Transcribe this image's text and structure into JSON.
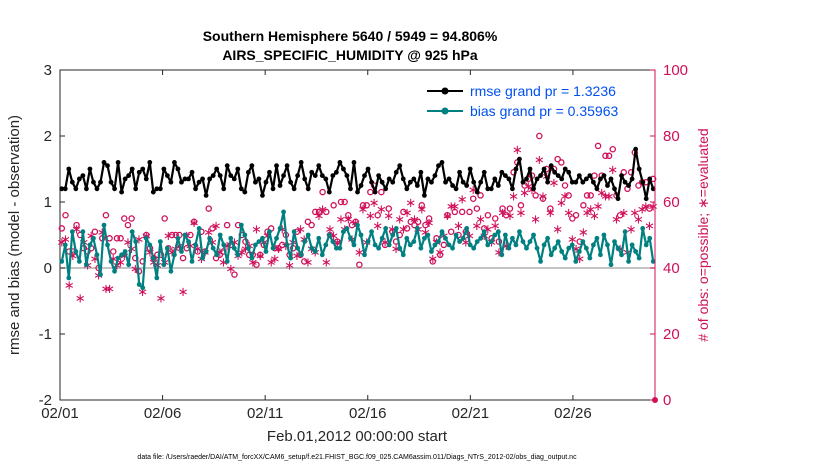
{
  "chart_data": {
    "type": "line",
    "title_line1": "Southern Hemisphere 5640 / 5949 = 94.806%",
    "title_line2": "AIRS_SPECIFIC_HUMIDITY @ 925 hPa",
    "xlabel": "Feb.01,2012 00:00:00 start",
    "ylabel_left": "rmse and bias (model - observation)",
    "ylabel_right": "# of obs: o=possible; ∗=evaluated",
    "footnote": "data file: /Users/raeder/DAI/ATM_forcXX/CAM6_setup/f.e21.FHIST_BGC.f09_025.CAM6assim.011/Diags_NTrS_2012-02/obs_diag_output.nc",
    "xticks": [
      "02/01",
      "02/06",
      "02/11",
      "02/16",
      "02/21",
      "02/26"
    ],
    "yticks_left": [
      "-2",
      "-1",
      "0",
      "1",
      "2",
      "3"
    ],
    "yticks_right": [
      "0",
      "20",
      "40",
      "60",
      "80",
      "100"
    ],
    "ylim_left": [
      -2,
      3
    ],
    "ylim_right": [
      0,
      100
    ],
    "xlim_days": [
      0,
      29
    ],
    "colors": {
      "rmse": "#000000",
      "bias": "#008080",
      "obs": "#d0105a",
      "zero_line": "#b0b0b0",
      "legend_text": "#0050f0"
    },
    "series": [
      {
        "name": "rmse grand pr = 1.3236",
        "key": "rmse",
        "values": [
          1.2,
          1.2,
          1.5,
          1.3,
          1.2,
          1.35,
          1.4,
          1.2,
          1.5,
          1.3,
          1.2,
          1.3,
          1.6,
          1.55,
          1.3,
          1.2,
          1.6,
          1.15,
          1.35,
          1.4,
          1.5,
          1.2,
          1.45,
          1.5,
          1.35,
          1.6,
          1.15,
          1.2,
          1.2,
          1.5,
          1.4,
          1.3,
          1.6,
          1.5,
          1.3,
          1.35,
          1.35,
          1.45,
          1.2,
          1.3,
          1.35,
          1.1,
          1.35,
          1.4,
          1.5,
          1.4,
          1.2,
          1.55,
          1.4,
          1.35,
          1.5,
          1.2,
          1.15,
          1.45,
          1.55,
          1.3,
          1.35,
          1.1,
          1.3,
          1.45,
          1.2,
          1.55,
          1.25,
          1.4,
          1.55,
          1.3,
          1.2,
          1.4,
          1.6,
          1.35,
          1.2,
          1.45,
          1.4,
          1.55,
          1.4,
          1.35,
          1.15,
          1.4,
          1.45,
          1.6,
          1.5,
          1.4,
          1.2,
          1.6,
          1.15,
          1.25,
          1.4,
          1.5,
          1.3,
          1.15,
          1.4,
          1.3,
          1.2,
          1.35,
          1.3,
          1.45,
          1.55,
          1.35,
          1.2,
          1.3,
          1.35,
          1.25,
          1.45,
          1.1,
          1.35,
          1.3,
          1.4,
          1.55,
          1.6,
          1.3,
          1.35,
          1.25,
          1.2,
          1.45,
          1.3,
          1.25,
          1.5,
          1.3,
          1.15,
          1.3,
          1.45,
          1.2,
          1.2,
          1.35,
          1.25,
          1.45,
          1.4,
          1.35,
          1.2,
          1.5,
          1.65,
          1.3,
          1.35,
          1.5,
          1.2,
          1.35,
          1.4,
          1.5,
          1.3,
          1.55,
          1.45,
          1.4,
          1.35,
          1.5,
          1.45,
          1.3,
          1.3,
          1.4,
          1.3,
          1.35,
          1.4,
          1.3,
          1.2,
          1.35,
          1.4,
          1.25,
          1.35,
          1.2,
          1.05,
          1.4,
          1.3,
          1.25,
          1.35,
          1.8,
          1.5,
          1.3,
          1.05,
          1.35,
          1.2
        ]
      },
      {
        "name": "bias grand pr = 0.35963",
        "key": "bias",
        "values": [
          0.1,
          0.35,
          -0.15,
          0.55,
          0.25,
          0.1,
          0.55,
          0.05,
          0.35,
          0.45,
          0.2,
          -0.1,
          0.65,
          0.35,
          0.1,
          -0.05,
          0.15,
          0.2,
          0.25,
          0.05,
          0.55,
          0.4,
          -0.25,
          -0.3,
          0.45,
          0.35,
          0.15,
          -0.15,
          0.4,
          0.05,
          0.3,
          -0.05,
          0.2,
          0.45,
          0.25,
          0.5,
          0.4,
          0.1,
          0.35,
          0.6,
          0.15,
          0.25,
          0.45,
          0.3,
          0.2,
          0.5,
          0.35,
          0.1,
          0.45,
          0.3,
          0.2,
          0.65,
          0.5,
          0.3,
          0.15,
          0.35,
          0.4,
          0.45,
          0.25,
          0.55,
          0.3,
          0.45,
          0.6,
          0.85,
          0.35,
          0.15,
          0.55,
          0.3,
          0.2,
          0.4,
          0.5,
          0.3,
          0.25,
          0.45,
          0.2,
          0.35,
          0.5,
          0.4,
          0.3,
          0.3,
          0.55,
          0.6,
          0.45,
          0.35,
          0.65,
          0.5,
          0.2,
          0.4,
          0.55,
          0.35,
          0.3,
          0.45,
          0.6,
          0.35,
          0.5,
          0.6,
          0.3,
          0.2,
          0.45,
          0.35,
          0.4,
          0.6,
          0.3,
          0.45,
          0.5,
          0.25,
          0.35,
          0.4,
          0.55,
          0.45,
          0.35,
          0.3,
          0.5,
          0.4,
          0.45,
          0.6,
          0.35,
          0.3,
          0.4,
          0.45,
          0.55,
          0.35,
          0.4,
          0.5,
          0.55,
          0.2,
          0.5,
          0.3,
          0.45,
          0.35,
          0.55,
          0.4,
          0.3,
          0.4,
          0.5,
          0.3,
          0.1,
          0.35,
          0.45,
          0.2,
          0.3,
          0.4,
          0.25,
          0.15,
          0.3,
          0.35,
          0.1,
          0.25,
          0.4,
          0.3,
          0.15,
          0.35,
          0.45,
          0.2,
          0.5,
          0.35,
          0.05,
          0.4,
          0.3,
          0.2,
          0.55,
          0.1,
          0.35,
          0.25,
          0.15,
          0.6,
          0.35,
          0.45,
          0.1
        ]
      },
      {
        "name": "possible",
        "key": "possible",
        "axis": "right",
        "values": [
          52,
          56,
          45,
          45,
          53,
          50,
          46,
          45,
          46,
          51,
          40,
          49,
          56,
          49,
          45,
          49,
          49,
          55,
          53,
          55,
          43,
          39,
          42,
          50,
          46,
          43,
          44,
          44,
          55,
          46,
          50,
          50,
          50,
          43,
          46,
          50,
          54,
          45,
          51,
          45,
          58,
          52,
          43,
          44,
          45,
          53,
          47,
          38,
          53,
          50,
          48,
          44,
          44,
          41,
          44,
          47,
          51,
          52,
          46,
          46,
          47,
          50,
          44,
          46,
          51,
          44,
          42,
          54,
          53,
          57,
          57,
          63,
          57,
          50,
          59,
          48,
          60,
          60,
          56,
          53,
          54,
          41,
          59,
          59,
          63,
          65,
          56,
          63,
          47,
          58,
          51,
          48,
          50,
          57,
          52,
          54,
          53,
          54,
          59,
          53,
          55,
          42,
          49,
          44,
          47,
          56,
          51,
          57,
          50,
          57,
          51,
          57,
          61,
          58,
          62,
          52,
          56,
          49,
          55,
          48,
          58,
          56,
          58,
          69,
          72,
          59,
          65,
          67,
          68,
          62,
          80,
          61,
          70,
          58,
          70,
          73,
          72,
          65,
          62,
          55,
          56,
          48,
          59,
          62,
          62,
          68,
          77,
          68,
          74,
          74,
          76,
          62,
          56,
          69,
          64,
          69,
          75,
          65,
          66,
          66,
          58,
          67
        ]
      },
      {
        "name": "evaluated",
        "key": "evaluated",
        "axis": "right",
        "values": [
          48,
          49,
          35,
          44,
          52,
          31,
          48,
          41,
          50,
          43,
          38,
          51,
          34,
          34,
          43,
          41,
          42,
          44,
          48,
          46,
          40,
          49,
          33,
          50,
          45,
          42,
          41,
          31,
          42,
          50,
          45,
          46,
          47,
          33,
          50,
          47,
          54,
          46,
          43,
          45,
          51,
          48,
          53,
          45,
          42,
          47,
          40,
          48,
          44,
          45,
          46,
          47,
          42,
          52,
          44,
          48,
          50,
          42,
          43,
          46,
          52,
          47,
          41,
          48,
          44,
          52,
          49,
          42,
          46,
          45,
          56,
          58,
          42,
          52,
          50,
          48,
          55,
          52,
          55,
          49,
          54,
          45,
          58,
          48,
          56,
          60,
          53,
          58,
          48,
          56,
          52,
          46,
          55,
          52,
          57,
          60,
          55,
          52,
          58,
          51,
          54,
          43,
          48,
          45,
          50,
          56,
          59,
          59,
          53,
          61,
          48,
          50,
          64,
          53,
          55,
          50,
          52,
          48,
          53,
          45,
          57,
          47,
          56,
          62,
          76,
          57,
          63,
          65,
          64,
          55,
          73,
          62,
          68,
          57,
          66,
          52,
          60,
          62,
          57,
          49,
          46,
          43,
          51,
          57,
          58,
          56,
          59,
          63,
          62,
          62,
          70,
          55,
          46,
          57,
          45,
          52,
          57,
          55,
          58,
          59,
          53,
          59
        ]
      }
    ]
  }
}
